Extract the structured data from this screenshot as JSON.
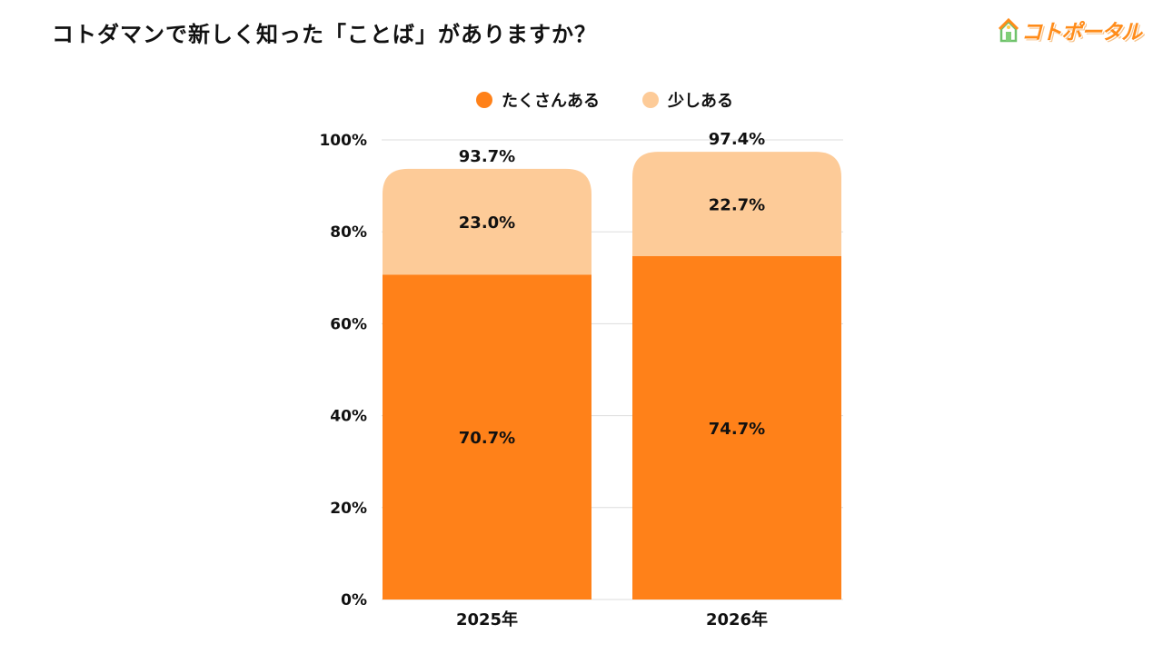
{
  "header": {
    "title": "コトダマンで新しく知った「ことば」がありますか？",
    "logo_text": "コトポータル"
  },
  "colors": {
    "series_a": "#ff8119",
    "series_b": "#fdcb98",
    "grid": "#dddddd"
  },
  "chart_data": {
    "type": "bar",
    "stacked": true,
    "categories": [
      "2025年",
      "2026年"
    ],
    "series": [
      {
        "name": "たくさんある",
        "values": [
          70.7,
          74.7
        ],
        "labels": [
          "70.7%",
          "74.7%"
        ]
      },
      {
        "name": "少しある",
        "values": [
          23.0,
          22.7
        ],
        "labels": [
          "23.0%",
          "22.7%"
        ]
      }
    ],
    "totals": [
      93.7,
      97.4
    ],
    "total_labels": [
      "93.7%",
      "97.4%"
    ],
    "ylim": [
      0,
      100
    ],
    "yticks": [
      0,
      20,
      40,
      60,
      80,
      100
    ],
    "ytick_labels": [
      "0%",
      "20%",
      "40%",
      "60%",
      "80%",
      "100%"
    ],
    "legend_position": "top-center",
    "grid": true
  }
}
